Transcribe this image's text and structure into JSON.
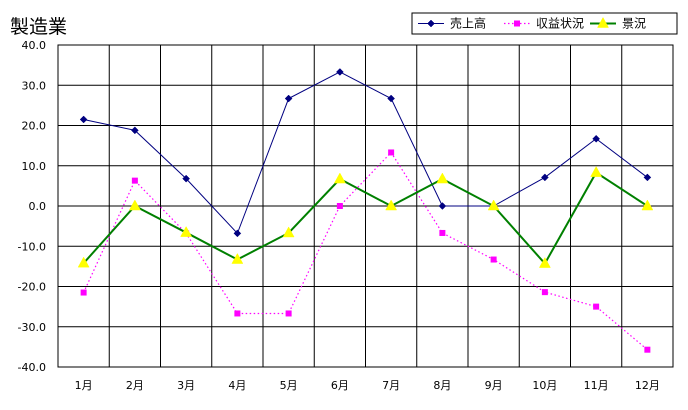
{
  "chart_data": {
    "type": "line",
    "title": "製造業",
    "xlabel": "",
    "ylabel": "",
    "categories": [
      "1月",
      "2月",
      "3月",
      "4月",
      "5月",
      "6月",
      "7月",
      "8月",
      "9月",
      "10月",
      "11月",
      "12月"
    ],
    "ylim": [
      -40,
      40
    ],
    "ytick_step": 10,
    "ytick_labels": [
      "40.0",
      "30.0",
      "20.0",
      "10.0",
      "0.0",
      "-10.0",
      "-20.0",
      "-30.0",
      "-40.0"
    ],
    "grid": true,
    "legend_position": "top-right",
    "series": [
      {
        "name": "売上高",
        "color": "#000080",
        "marker": "diamond",
        "line": "solid",
        "values": [
          21.5,
          18.8,
          6.8,
          -6.8,
          26.7,
          33.3,
          26.7,
          0.0,
          0.0,
          7.1,
          16.7,
          7.1
        ]
      },
      {
        "name": "収益状況",
        "color": "#ff00ff",
        "marker": "square",
        "line": "dotted",
        "values": [
          -21.5,
          6.3,
          -6.8,
          -26.7,
          -26.7,
          0.0,
          13.3,
          -6.7,
          -13.3,
          -21.4,
          -25.0,
          -35.7
        ]
      },
      {
        "name": "景況",
        "color": "#008000",
        "marker": "triangle",
        "marker_color": "#ffff00",
        "line": "solid",
        "values": [
          -14.2,
          0.0,
          -6.6,
          -13.3,
          -6.7,
          6.7,
          0.0,
          6.7,
          0.0,
          -14.3,
          8.3,
          0.0
        ]
      }
    ]
  }
}
